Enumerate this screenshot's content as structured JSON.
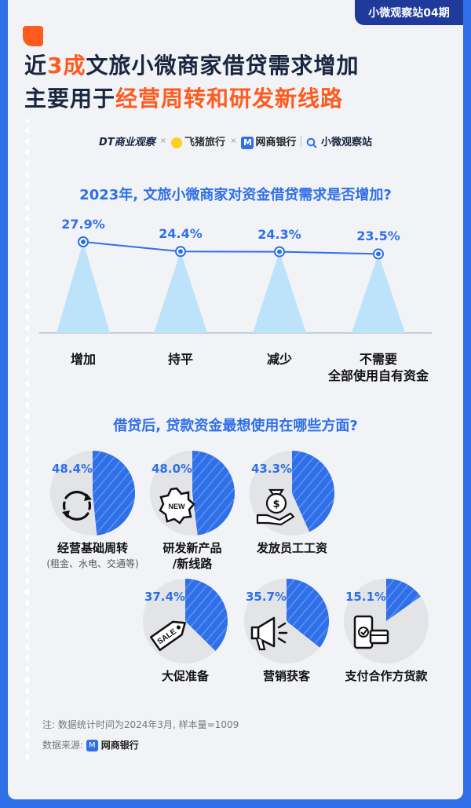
{
  "badge": "小微观察站04期",
  "headline": {
    "line1_pre": "近",
    "line1_hl": "3成",
    "line1_post": "文旅小微商家借贷需求增加",
    "line2_pre": "主要用于",
    "line2_hl": "经营周转和研发新线路"
  },
  "logos": {
    "dt": "DT商业观察",
    "fz": "飞猪旅行",
    "wsyh": "网商银行",
    "xwgc": "小微观察站",
    "sep": "×"
  },
  "colors": {
    "primary": "#2f6fe8",
    "accent": "#ff5a1f",
    "cone": "#bde3fb",
    "pie_bg": "#e3e4e8"
  },
  "section1": {
    "question": "2023年, 文旅小微商家对资金借贷需求是否增加?",
    "categories": [
      {
        "label": "增加",
        "sub": "",
        "value_label": "27.9%"
      },
      {
        "label": "持平",
        "sub": "",
        "value_label": "24.4%"
      },
      {
        "label": "减少",
        "sub": "",
        "value_label": "24.3%"
      },
      {
        "label": "不需要",
        "sub": "全部使用自有资金",
        "value_label": "23.5%"
      }
    ]
  },
  "section2": {
    "question": "借贷后, 贷款资金最想使用在哪些方面?",
    "items": [
      {
        "label": "经营基础周转",
        "sub": "(租金、水电、交通等)",
        "value_label": "48.4%",
        "icon": "cycle-arrows-icon"
      },
      {
        "label": "研发新产品",
        "sub": "/新线路",
        "value_label": "48.0%",
        "icon": "new-badge-icon"
      },
      {
        "label": "发放员工工资",
        "sub": "",
        "value_label": "43.3%",
        "icon": "money-bag-hand-icon"
      },
      {
        "label": "大促准备",
        "sub": "",
        "value_label": "37.4%",
        "icon": "sale-tag-icon"
      },
      {
        "label": "营销获客",
        "sub": "",
        "value_label": "35.7%",
        "icon": "megaphone-icon"
      },
      {
        "label": "支付合作方货款",
        "sub": "",
        "value_label": "15.1%",
        "icon": "phone-card-icon"
      }
    ]
  },
  "note": "注: 数据统计时间为2024年3月, 样本量=1009",
  "source_label": "数据来源:",
  "source_name": "网商银行",
  "chart_data": [
    {
      "type": "line",
      "title": "2023年, 文旅小微商家对资金借贷需求是否增加?",
      "categories": [
        "增加",
        "持平",
        "减少",
        "不需要 全部使用自有资金"
      ],
      "values": [
        27.9,
        24.4,
        24.3,
        23.5
      ],
      "unit": "%"
    },
    {
      "type": "pie",
      "title": "借贷后, 贷款资金最想使用在哪些方面?",
      "categories": [
        "经营基础周转",
        "研发新产品/新线路",
        "发放员工工资",
        "大促准备",
        "营销获客",
        "支付合作方货款"
      ],
      "values": [
        48.4,
        48.0,
        43.3,
        37.4,
        35.7,
        15.1
      ],
      "unit": "%"
    }
  ]
}
